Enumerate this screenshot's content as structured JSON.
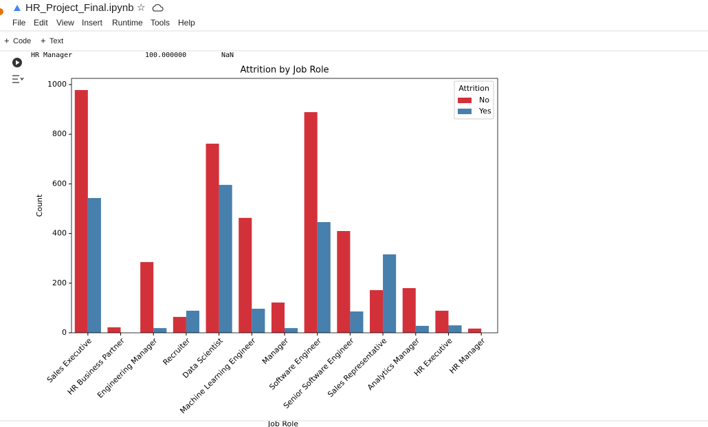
{
  "header": {
    "title": "HR_Project_Final.ipynb",
    "menu": [
      "File",
      "Edit",
      "View",
      "Insert",
      "Runtime",
      "Tools",
      "Help"
    ]
  },
  "toolbar": [
    "Code",
    "Text"
  ],
  "output_line": [
    "HR Manager",
    "100.000000",
    "NaN"
  ],
  "chart_data": {
    "type": "bar",
    "title": "Attrition by Job Role",
    "ylabel": "Count",
    "xlabel": "Job Role",
    "categories": [
      "Sales Executive",
      "HR Business Partner",
      "Engineering Manager",
      "Recruiter",
      "Data Scientist",
      "Machine Learning Engineer",
      "Manager",
      "Software Engineer",
      "Senior Software Engineer",
      "Sales Representative",
      "Analytics Manager",
      "HR Executive",
      "HR Manager"
    ],
    "legend_title": "Attrition",
    "legend": "upper right",
    "series": [
      {
        "name": "No",
        "color": "#d3313a",
        "values": [
          978,
          22,
          285,
          64,
          762,
          463,
          122,
          889,
          410,
          172,
          180,
          89,
          17
        ]
      },
      {
        "name": "Yes",
        "color": "#477fad",
        "values": [
          543,
          null,
          19,
          89,
          596,
          97,
          19,
          446,
          86,
          316,
          28,
          30,
          null
        ]
      }
    ],
    "ylim": [
      0,
      1025
    ],
    "yticks": [
      0,
      200,
      400,
      600,
      800,
      1000
    ]
  }
}
